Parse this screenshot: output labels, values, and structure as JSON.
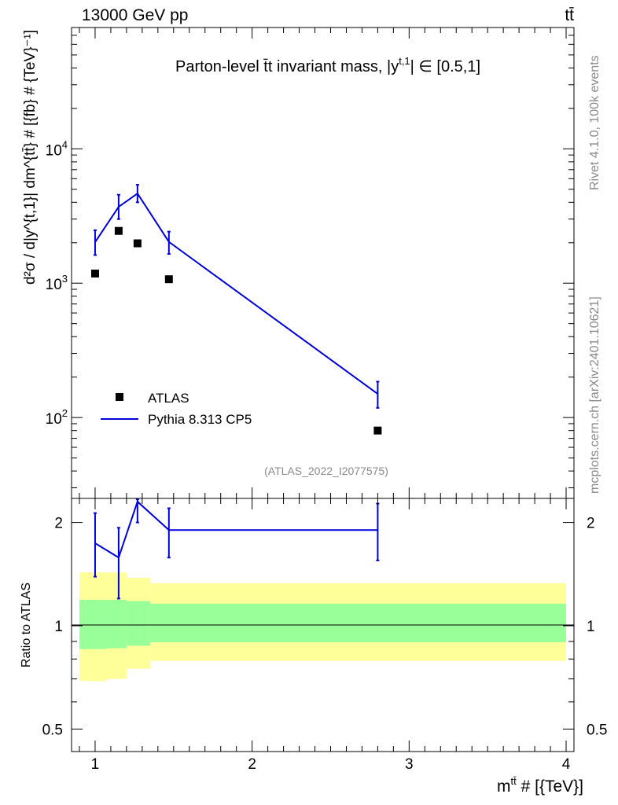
{
  "header": {
    "energy": "13000 GeV pp",
    "process": "tt̄"
  },
  "side_labels": {
    "rivet": "Rivet 4.1.0,  100k events",
    "mcplots": "mcplots.cern.ch [arXiv:2401.10621]"
  },
  "chart_data": {
    "type": "line",
    "title": "Parton-level t̄t invariant mass, |y^{t,1}| ∈ [0.5,1]",
    "title_main": "Parton-level t̄t invariant mass, |y",
    "title_sup": "t,1",
    "title_tail": "| ∈ [0.5,1]",
    "analysis_id": "(ATLAS_2022_I2077575)",
    "xlabel": "m^{tt̄} # [{TeV}]",
    "xlabel_main": "m",
    "xlabel_sup": "tt̄",
    "xlabel_tail": " # [{TeV}]",
    "ylabel": "d²σ / d|y^{t,1}| dm^{tt̄} # [{fb} # {TeV}⁻¹]",
    "xlim": [
      0.85,
      4.05
    ],
    "ylim": [
      25,
      80000
    ],
    "ratio_ylabel": "Ratio to ATLAS",
    "ratio_ylim": [
      0.43,
      2.35
    ],
    "x_ticks": [
      "1",
      "2",
      "3",
      "4"
    ],
    "y_ticks": [
      {
        "base": "10",
        "exp": "2",
        "value": 100
      },
      {
        "base": "10",
        "exp": "3",
        "value": 1000
      },
      {
        "base": "10",
        "exp": "4",
        "value": 10000
      }
    ],
    "ratio_ticks": [
      "0.5",
      "1",
      "2"
    ],
    "series": [
      {
        "name": "ATLAS",
        "kind": "data",
        "color": "#000000",
        "x": [
          1.0,
          1.15,
          1.27,
          1.47,
          2.8
        ],
        "values": [
          1180,
          2450,
          1980,
          1070,
          80
        ]
      },
      {
        "name": "Pythia 8.313 CP5",
        "kind": "mc",
        "color": "#0000dd",
        "x": [
          1.0,
          1.15,
          1.27,
          1.47,
          2.8
        ],
        "values": [
          2020,
          3700,
          4650,
          2030,
          150
        ],
        "err_low": [
          1620,
          3000,
          4000,
          1650,
          118
        ],
        "err_high": [
          2480,
          4550,
          5400,
          2420,
          185
        ]
      }
    ],
    "ratio": {
      "x": [
        1.0,
        1.15,
        1.27,
        1.47,
        2.8
      ],
      "values": [
        1.74,
        1.58,
        2.3,
        1.9,
        1.9
      ],
      "err_low": [
        1.39,
        1.2,
        2.0,
        1.58,
        1.55
      ],
      "err_high": [
        2.13,
        1.93,
        2.5,
        2.2,
        2.27
      ],
      "bands": {
        "x_edges": [
          0.9,
          1.07,
          1.2,
          1.35,
          4.0
        ],
        "green_low": [
          0.855,
          0.86,
          0.875,
          0.895
        ],
        "green_high": [
          1.19,
          1.19,
          1.18,
          1.16
        ],
        "yellow_low": [
          0.69,
          0.7,
          0.75,
          0.79
        ],
        "yellow_high": [
          1.43,
          1.43,
          1.38,
          1.33
        ]
      }
    }
  }
}
